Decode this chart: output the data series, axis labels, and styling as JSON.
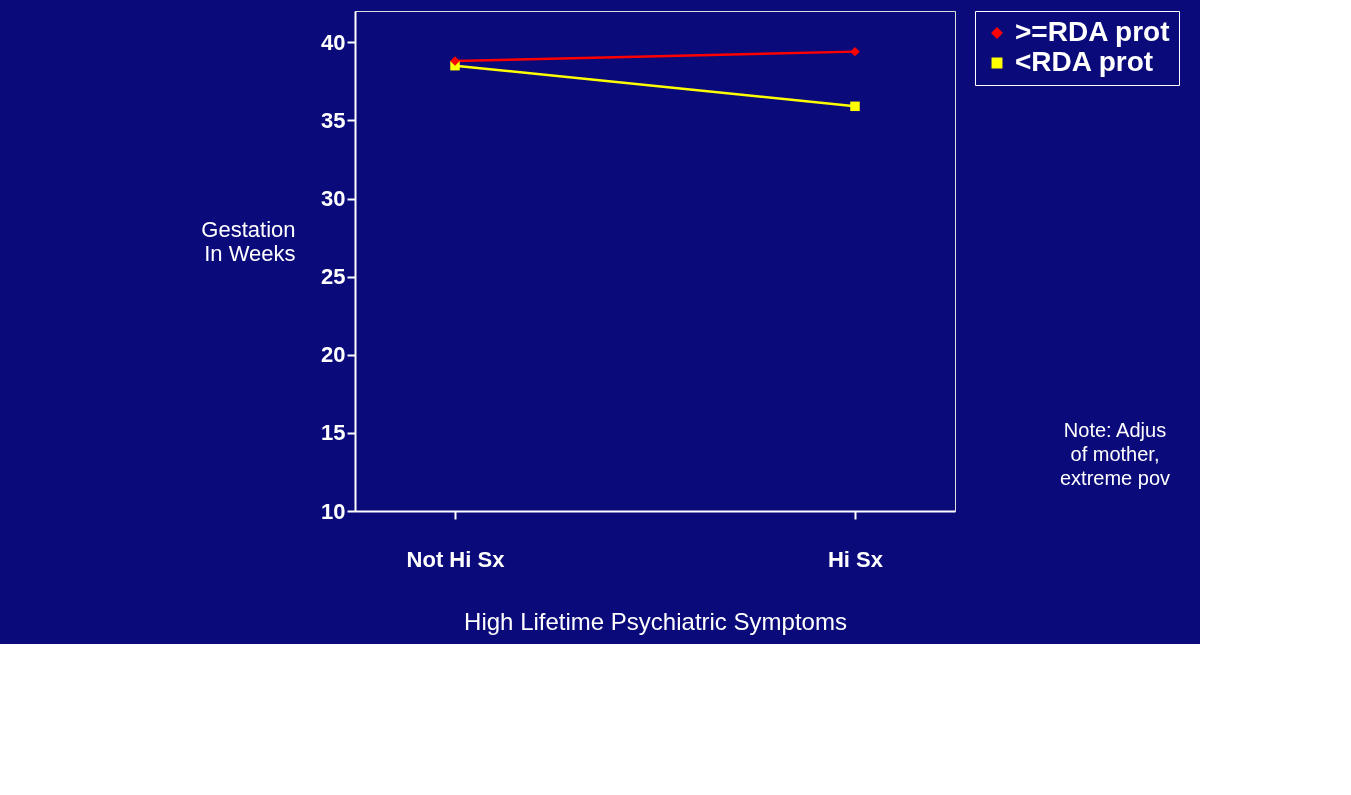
{
  "chart_data": {
    "type": "line",
    "categories": [
      "Not Hi Sx",
      "Hi Sx"
    ],
    "series": [
      {
        "name": ">=RDA prot",
        "color": "#ff0000",
        "marker": "diamond",
        "values": [
          38.8,
          39.4
        ]
      },
      {
        "name": "<RDA prot",
        "color": "#ffff00",
        "marker": "square",
        "values": [
          38.5,
          35.9
        ]
      }
    ],
    "xlabel": "High Lifetime Psychiatric Symptoms",
    "ylabel": "Gestation In Weeks",
    "ylim": [
      10,
      42
    ],
    "yticks": [
      10,
      15,
      20,
      25,
      30,
      35,
      40
    ],
    "grid": false,
    "legend": "right",
    "line_style": "solid",
    "annotations": [
      "Note: Adjus",
      "of mother,",
      "extreme pov"
    ]
  }
}
